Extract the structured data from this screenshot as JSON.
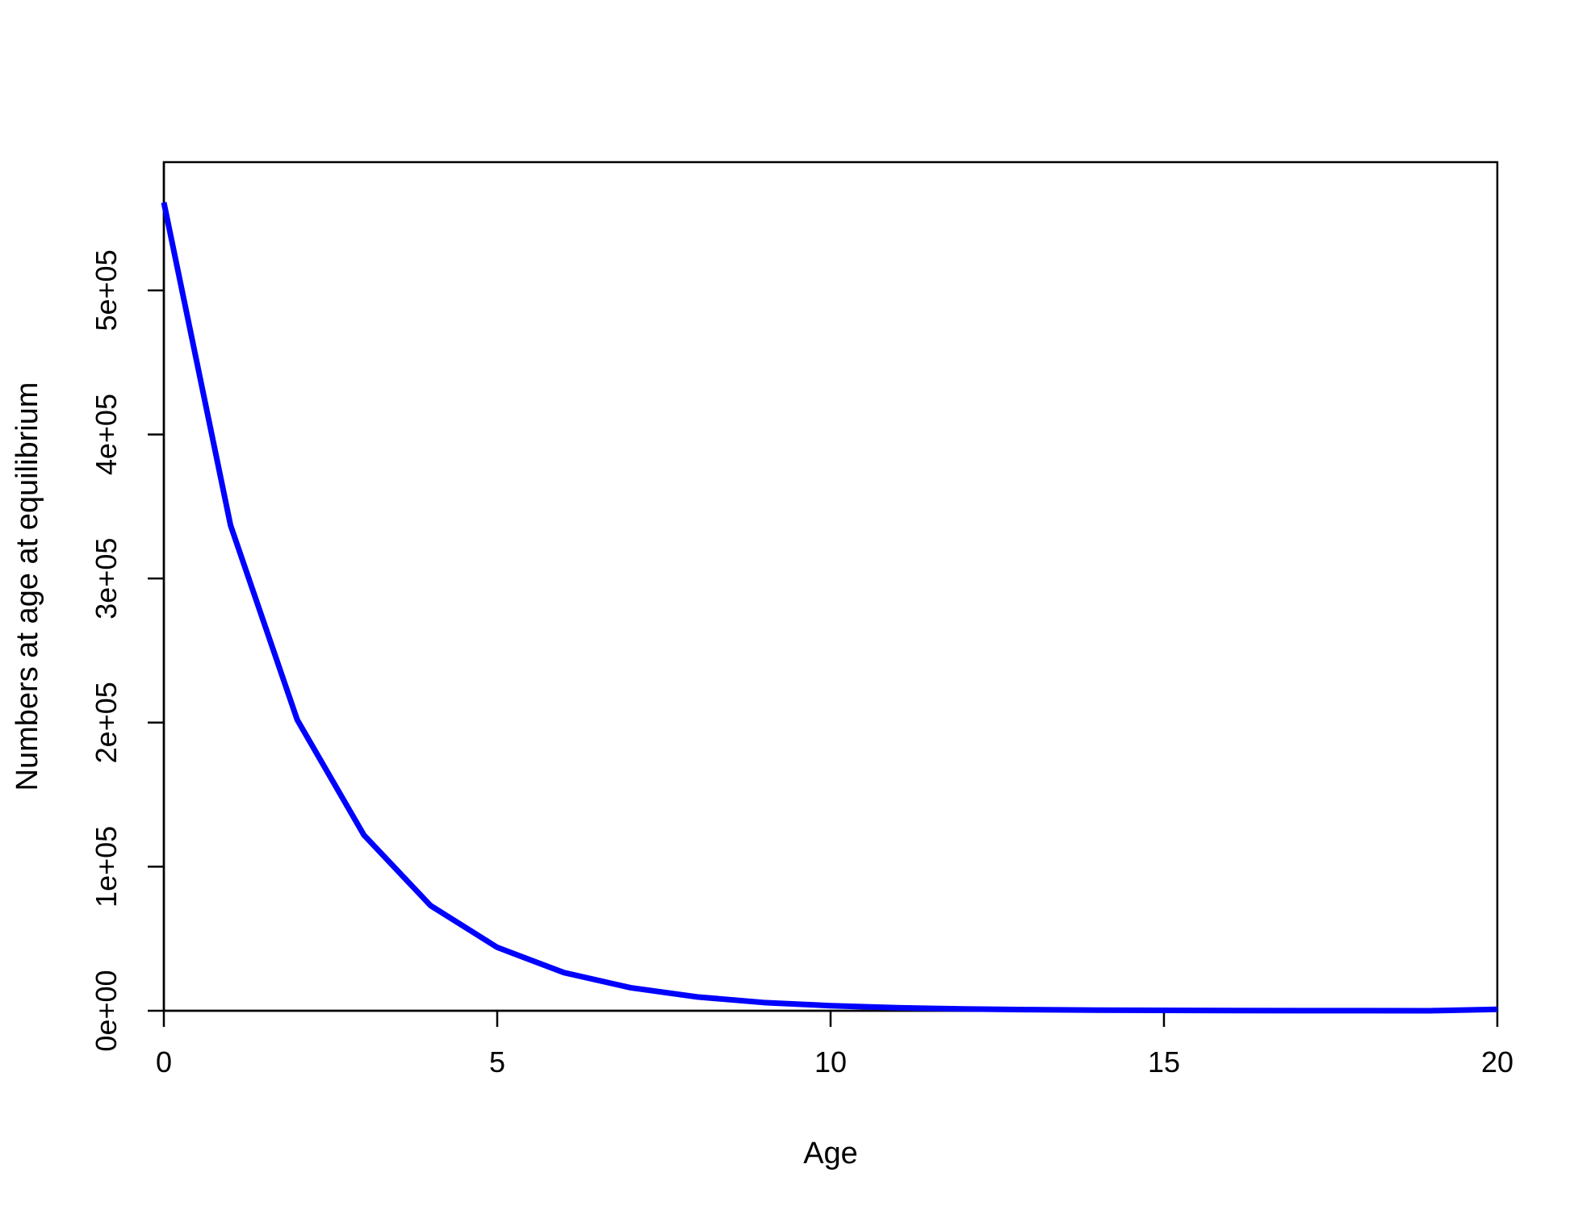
{
  "chart_data": {
    "type": "line",
    "title": "",
    "xlabel": "Age",
    "ylabel": "Numbers at age at equilibrium",
    "xlim": [
      0,
      20
    ],
    "ylim": [
      0,
      589000
    ],
    "x_ticks": [
      0,
      5,
      10,
      15,
      20
    ],
    "x_tick_labels": [
      "0",
      "5",
      "10",
      "15",
      "20"
    ],
    "y_ticks": [
      0,
      100000,
      200000,
      300000,
      400000,
      500000
    ],
    "y_tick_labels": [
      "0e+00",
      "1e+05",
      "2e+05",
      "3e+05",
      "4e+05",
      "5e+05"
    ],
    "grid": false,
    "legend": "none",
    "line_color": "#0000ff",
    "series": [
      {
        "x": [
          0,
          1,
          2,
          3,
          4,
          5,
          6,
          7,
          8,
          9,
          10,
          11,
          12,
          13,
          14,
          15,
          16,
          17,
          18,
          19,
          20
        ],
        "values": [
          561000,
          337000,
          202000,
          122000,
          73000,
          44000,
          26500,
          16000,
          9600,
          5700,
          3500,
          2100,
          1250,
          750,
          450,
          270,
          165,
          100,
          60,
          35,
          1000
        ]
      }
    ]
  }
}
